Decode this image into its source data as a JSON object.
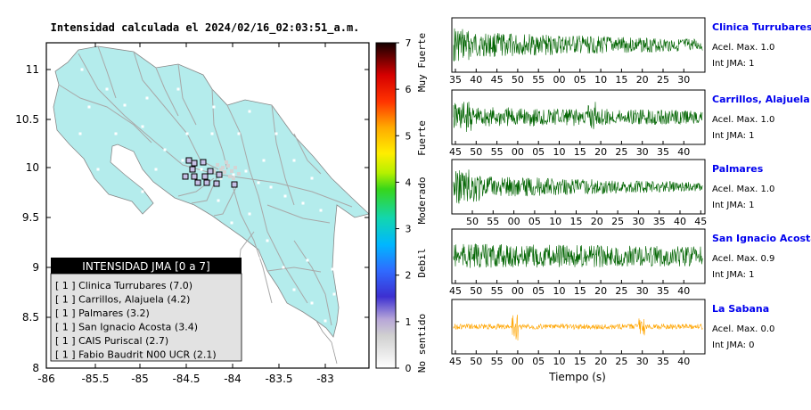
{
  "map": {
    "title": "Intensidad calculada el 2024/02/16_02:03:51_a.m.",
    "x_ticks": [
      "-86",
      "-85.5",
      "-85",
      "-84.5",
      "-84",
      "-83.5",
      "-83"
    ],
    "y_ticks": [
      "11",
      "10.5",
      "10",
      "9.5",
      "9",
      "8.5",
      "8"
    ],
    "legend": {
      "title": "INTENSIDAD JMA [0 a 7]",
      "items": [
        "[ 1 ]  Clinica Turrubares (7.0)",
        "[ 1 ]  Carrillos, Alajuela (4.2)",
        "[ 1 ]  Palmares (3.2)",
        "[ 1 ]  San Ignacio Acosta (3.4)",
        "[ 1 ]  CAIS Puriscal (2.7)",
        "[ 1 ]  Fabio Baudrit N00 UCR (2.1)"
      ]
    },
    "colorbar": {
      "ticks": [
        "0",
        "1",
        "2",
        "3",
        "4",
        "5",
        "6",
        "7"
      ],
      "labels": [
        "No sentido",
        "Debil",
        "Moderado",
        "Fuerte",
        "Muy Fuerte"
      ]
    },
    "colors": {
      "land": "#b4ecec",
      "border": "#a8a8a8",
      "legend_header": "#000000",
      "legend_body": "#e2e2e2"
    }
  },
  "waveforms": {
    "xlabel": "Tiempo (s)",
    "stations": [
      {
        "name": "Clinica Turrubares",
        "acel": "Acel. Max. 1.0",
        "int": "Int JMA: 1",
        "ticks": [
          "35",
          "40",
          "45",
          "50",
          "55",
          "00",
          "05",
          "10",
          "15",
          "20",
          "25",
          "30"
        ],
        "color": "#006400"
      },
      {
        "name": "Carrillos, Alajuela",
        "acel": "Acel. Max. 1.0",
        "int": "Int JMA: 1",
        "ticks": [
          "45",
          "50",
          "55",
          "00",
          "05",
          "10",
          "15",
          "20",
          "25",
          "30",
          "35",
          "40"
        ],
        "color": "#006400"
      },
      {
        "name": "Palmares",
        "acel": "Acel. Max. 1.0",
        "int": "Int JMA: 1",
        "ticks": [
          "50",
          "55",
          "00",
          "05",
          "10",
          "15",
          "20",
          "25",
          "30",
          "35",
          "40",
          "45"
        ],
        "color": "#006400"
      },
      {
        "name": "San Ignacio Acosta",
        "acel": "Acel. Max. 0.9",
        "int": "Int JMA: 1",
        "ticks": [
          "45",
          "50",
          "55",
          "00",
          "05",
          "10",
          "15",
          "20",
          "25",
          "30",
          "35",
          "40"
        ],
        "color": "#006400"
      },
      {
        "name": "La Sabana",
        "acel": "Acel. Max. 0.0",
        "int": "Int JMA: 0",
        "ticks": [
          "45",
          "50",
          "55",
          "00",
          "05",
          "10",
          "15",
          "20",
          "25",
          "30",
          "35",
          "40"
        ],
        "color": "#ffa500"
      }
    ]
  }
}
